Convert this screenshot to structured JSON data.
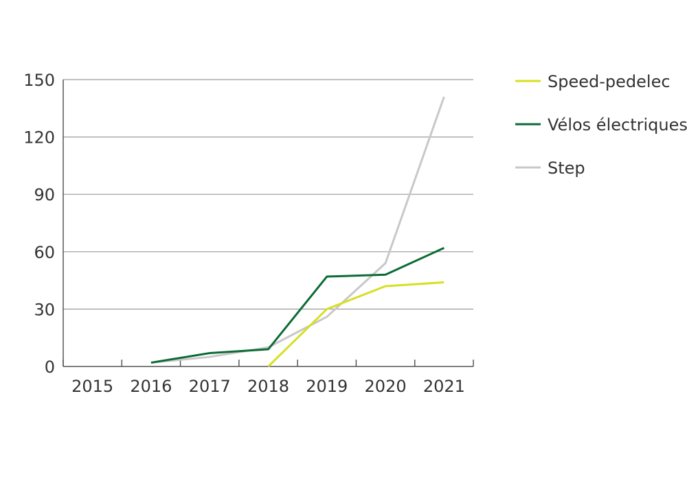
{
  "chart_data": {
    "type": "line",
    "title": "",
    "xlabel": "",
    "ylabel": "",
    "categories": [
      "2015",
      "2016",
      "2017",
      "2018",
      "2019",
      "2020",
      "2021"
    ],
    "ylim": [
      0,
      150
    ],
    "yticks": [
      0,
      30,
      60,
      90,
      120,
      150
    ],
    "grid": true,
    "legend_position": "top-right",
    "series": [
      {
        "name": "Speed-pedelec",
        "color": "#d7df23",
        "values": [
          null,
          null,
          null,
          0,
          30,
          42,
          44
        ]
      },
      {
        "name": "Vélos électriques",
        "color": "#0b6b35",
        "values": [
          null,
          2,
          7,
          9,
          47,
          48,
          62
        ]
      },
      {
        "name": "Step",
        "color": "#c8c8c8",
        "values": [
          null,
          2,
          5,
          10,
          26,
          54,
          141
        ]
      }
    ]
  }
}
